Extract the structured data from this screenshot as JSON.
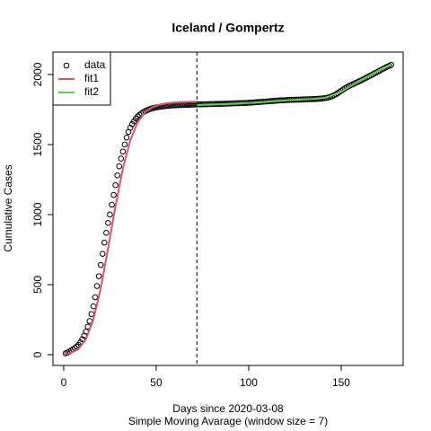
{
  "chart_data": {
    "type": "scatter",
    "title": "Iceland / Gompertz",
    "x_label": "Days since 2020-03-08",
    "subtitle": "Simple Moving Avarage (window size = 7)",
    "y_label": "Cumulative Cases",
    "xlim": [
      -5.8,
      183.5
    ],
    "ylim": [
      -77,
      2160
    ],
    "xticks": [
      0,
      50,
      100,
      150
    ],
    "yticks": [
      0,
      500,
      1000,
      1500,
      2000
    ],
    "vline": 72,
    "legend": "topleft",
    "series": [
      {
        "name": "data",
        "color": "#000000",
        "style": "points",
        "x": [
          1,
          2,
          3,
          4,
          5,
          6,
          7,
          8,
          9,
          10,
          11,
          12,
          13,
          14,
          15,
          16,
          17,
          18,
          19,
          20,
          21,
          22,
          23,
          24,
          25,
          26,
          27,
          28,
          29,
          30,
          31,
          32,
          33,
          34,
          35,
          36,
          37,
          38,
          39,
          40,
          41,
          42,
          43,
          44,
          45,
          46,
          47,
          48,
          49,
          50,
          51,
          52,
          53,
          54,
          55,
          56,
          57,
          58,
          59,
          60,
          61,
          62,
          63,
          64,
          65,
          66,
          67,
          68,
          69,
          70,
          71,
          72,
          73,
          74,
          75,
          76,
          77,
          78,
          79,
          80,
          81,
          82,
          83,
          84,
          85,
          86,
          87,
          88,
          89,
          90,
          91,
          92,
          93,
          94,
          95,
          96,
          97,
          98,
          99,
          100,
          101,
          102,
          103,
          104,
          105,
          106,
          107,
          108,
          109,
          110,
          111,
          112,
          113,
          114,
          115,
          116,
          117,
          118,
          119,
          120,
          121,
          122,
          123,
          124,
          125,
          126,
          127,
          128,
          129,
          130,
          131,
          132,
          133,
          134,
          135,
          136,
          137,
          138,
          139,
          140,
          141,
          142,
          143,
          144,
          145,
          146,
          147,
          148,
          149,
          150,
          151,
          152,
          153,
          154,
          155,
          156,
          157,
          158,
          159,
          160,
          161,
          162,
          163,
          164,
          165,
          166,
          167,
          168,
          169,
          170,
          171,
          172,
          173,
          174,
          175,
          176,
          177
        ],
        "values": [
          10,
          16,
          22,
          30,
          38,
          48,
          58,
          70,
          88,
          110,
          135,
          165,
          200,
          240,
          290,
          345,
          410,
          490,
          560,
          640,
          720,
          800,
          870,
          940,
          1000,
          1070,
          1140,
          1210,
          1280,
          1345,
          1400,
          1450,
          1500,
          1550,
          1590,
          1620,
          1645,
          1665,
          1685,
          1700,
          1712,
          1722,
          1731,
          1739,
          1745,
          1750,
          1755,
          1759,
          1762,
          1765,
          1767,
          1769,
          1771,
          1773,
          1775,
          1776,
          1777,
          1778,
          1779,
          1780,
          1781,
          1781,
          1782,
          1782,
          1783,
          1783,
          1784,
          1784,
          1785,
          1785,
          1786,
          1786,
          1787,
          1787,
          1787,
          1788,
          1788,
          1788,
          1789,
          1789,
          1789,
          1790,
          1790,
          1790,
          1791,
          1791,
          1791,
          1792,
          1792,
          1793,
          1793,
          1794,
          1794,
          1795,
          1795,
          1796,
          1796,
          1797,
          1797,
          1798,
          1799,
          1800,
          1801,
          1802,
          1803,
          1804,
          1805,
          1806,
          1807,
          1808,
          1809,
          1810,
          1811,
          1812,
          1813,
          1814,
          1815,
          1816,
          1816,
          1817,
          1818,
          1818,
          1819,
          1819,
          1820,
          1820,
          1821,
          1821,
          1822,
          1822,
          1823,
          1823,
          1824,
          1824,
          1825,
          1825,
          1826,
          1827,
          1828,
          1829,
          1831,
          1833,
          1836,
          1840,
          1845,
          1851,
          1858,
          1866,
          1875,
          1884,
          1893,
          1901,
          1909,
          1916,
          1923,
          1929,
          1935,
          1941,
          1947,
          1953,
          1959,
          1966,
          1973,
          1980,
          1987,
          1994,
          2001,
          2008,
          2015,
          2022,
          2029,
          2036,
          2043,
          2050,
          2056,
          2062,
          2068
        ]
      },
      {
        "name": "fit1",
        "color": "#DF536B",
        "style": "line",
        "x": [
          0,
          4,
          8,
          12,
          16,
          20,
          24,
          28,
          32,
          36,
          40,
          44,
          48,
          52,
          56,
          60,
          64,
          68,
          72
        ],
        "values": [
          3,
          12,
          40,
          110,
          250,
          470,
          760,
          1060,
          1330,
          1530,
          1660,
          1730,
          1767,
          1785,
          1795,
          1800,
          1803,
          1805,
          1806
        ]
      },
      {
        "name": "fit2",
        "color": "#61D04F",
        "style": "line",
        "x": [
          72,
          79,
          86,
          93,
          100,
          107,
          114,
          121,
          128,
          135,
          142,
          149,
          156,
          163,
          170,
          177
        ],
        "values": [
          1782,
          1785,
          1788,
          1792,
          1797,
          1803,
          1810,
          1816,
          1821,
          1826,
          1835,
          1870,
          1925,
          1975,
          2025,
          2072
        ]
      }
    ]
  }
}
